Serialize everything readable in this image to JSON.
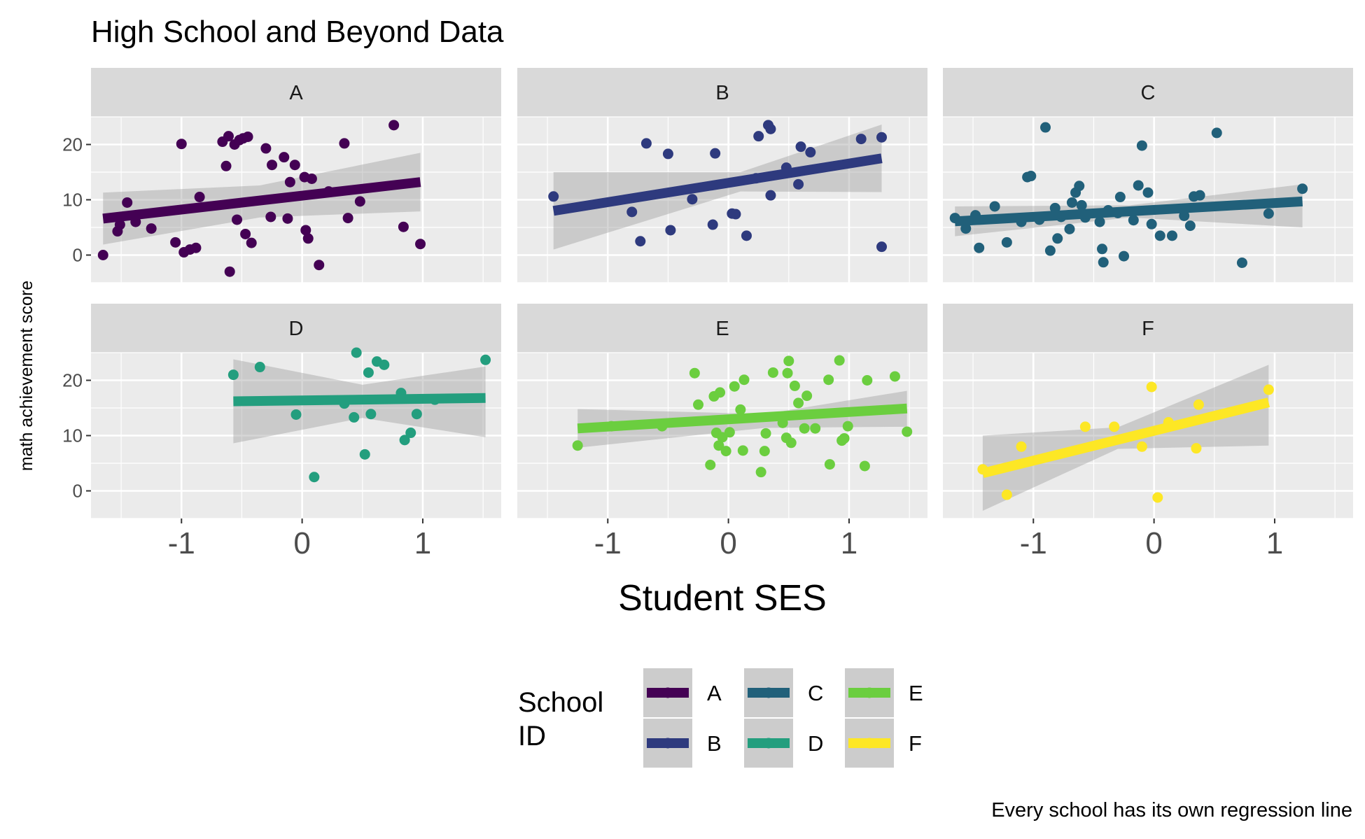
{
  "chart_data": {
    "type": "scatter",
    "title": "High School and Beyond Data",
    "xlabel": "Student SES",
    "ylabel": "math achievement score",
    "caption": "Every school has its own regression line",
    "xlim": [
      -1.75,
      1.65
    ],
    "ylim": [
      -5,
      25
    ],
    "x_ticks": [
      -1,
      0,
      1
    ],
    "x_tick_labels": [
      "-1",
      "0",
      "1"
    ],
    "y_ticks": [
      0,
      10,
      20
    ],
    "y_tick_labels": [
      "0",
      "10",
      "20"
    ],
    "grid": true,
    "facet_layout": "2x3",
    "legend": {
      "title_lines": [
        "School",
        "ID"
      ],
      "position": "bottom",
      "labels": [
        "A",
        "B",
        "C",
        "D",
        "E",
        "F"
      ]
    },
    "panels": [
      {
        "name": "A",
        "color": "#440154",
        "points": [
          [
            -1.65,
            0
          ],
          [
            -1.53,
            4.3
          ],
          [
            -1.51,
            5.5
          ],
          [
            -1.45,
            9.5
          ],
          [
            -1.38,
            6
          ],
          [
            -1.25,
            4.8
          ],
          [
            -1.05,
            2.3
          ],
          [
            -1.0,
            20.1
          ],
          [
            -0.98,
            0.5
          ],
          [
            -0.93,
            1
          ],
          [
            -0.88,
            1.3
          ],
          [
            -0.85,
            10.5
          ],
          [
            -0.66,
            20.5
          ],
          [
            -0.63,
            16.1
          ],
          [
            -0.61,
            21.5
          ],
          [
            -0.6,
            -3
          ],
          [
            -0.56,
            20
          ],
          [
            -0.54,
            6.4
          ],
          [
            -0.52,
            20.8
          ],
          [
            -0.49,
            21.1
          ],
          [
            -0.47,
            3.8
          ],
          [
            -0.45,
            21.4
          ],
          [
            -0.42,
            2.2
          ],
          [
            -0.3,
            19.3
          ],
          [
            -0.26,
            6.9
          ],
          [
            -0.25,
            16.3
          ],
          [
            -0.15,
            17.7
          ],
          [
            -0.12,
            6.6
          ],
          [
            -0.1,
            13.2
          ],
          [
            -0.06,
            16.3
          ],
          [
            0.02,
            14.1
          ],
          [
            0.03,
            4.5
          ],
          [
            0.05,
            3
          ],
          [
            0.08,
            13.8
          ],
          [
            0.14,
            -1.8
          ],
          [
            0.22,
            11.5
          ],
          [
            0.35,
            20.2
          ],
          [
            0.38,
            6.7
          ],
          [
            0.48,
            9.7
          ],
          [
            0.76,
            23.5
          ],
          [
            0.84,
            5.1
          ],
          [
            0.98,
            2
          ]
        ],
        "fit": [
          [
            -1.65,
            6.6
          ],
          [
            0.98,
            13.2
          ]
        ],
        "ci_upper": [
          [
            -1.65,
            11.3
          ],
          [
            -0.35,
            12.6
          ],
          [
            0.98,
            18.5
          ]
        ],
        "ci_lower": [
          [
            -1.65,
            1.9
          ],
          [
            -0.35,
            6.8
          ],
          [
            0.98,
            7.9
          ]
        ]
      },
      {
        "name": "B",
        "color": "#2e3a7e",
        "points": [
          [
            -1.45,
            10.6
          ],
          [
            -0.8,
            7.8
          ],
          [
            -0.73,
            2.5
          ],
          [
            -0.68,
            20.2
          ],
          [
            -0.5,
            18.3
          ],
          [
            -0.48,
            4.5
          ],
          [
            -0.3,
            10.1
          ],
          [
            -0.13,
            5.5
          ],
          [
            -0.11,
            18.4
          ],
          [
            0.03,
            7.5
          ],
          [
            0.06,
            7.4
          ],
          [
            0.15,
            3.5
          ],
          [
            0.23,
            13.9
          ],
          [
            0.25,
            21.5
          ],
          [
            0.33,
            23.5
          ],
          [
            0.35,
            22.8
          ],
          [
            0.35,
            10.8
          ],
          [
            0.48,
            15.8
          ],
          [
            0.58,
            12.8
          ],
          [
            0.6,
            19.6
          ],
          [
            0.68,
            18.6
          ],
          [
            1.1,
            21
          ],
          [
            1.27,
            21.3
          ],
          [
            1.27,
            1.5
          ]
        ],
        "fit": [
          [
            -1.45,
            8
          ],
          [
            1.27,
            17.5
          ]
        ],
        "ci_upper": [
          [
            -1.45,
            15
          ],
          [
            0.1,
            15
          ],
          [
            1.27,
            23.6
          ]
        ],
        "ci_lower": [
          [
            -1.45,
            1
          ],
          [
            0.1,
            11.5
          ],
          [
            1.27,
            11.4
          ]
        ]
      },
      {
        "name": "C",
        "color": "#21607a",
        "points": [
          [
            -1.65,
            6.7
          ],
          [
            -1.56,
            4.8
          ],
          [
            -1.48,
            7.2
          ],
          [
            -1.45,
            1.3
          ],
          [
            -1.32,
            8.8
          ],
          [
            -1.22,
            2.3
          ],
          [
            -1.1,
            6
          ],
          [
            -1.05,
            14.1
          ],
          [
            -1.02,
            14.3
          ],
          [
            -0.95,
            6.4
          ],
          [
            -0.9,
            23.1
          ],
          [
            -0.86,
            0.8
          ],
          [
            -0.82,
            8.5
          ],
          [
            -0.8,
            3
          ],
          [
            -0.77,
            6.9
          ],
          [
            -0.7,
            4.7
          ],
          [
            -0.68,
            9.5
          ],
          [
            -0.65,
            11.3
          ],
          [
            -0.62,
            12.5
          ],
          [
            -0.6,
            9
          ],
          [
            -0.57,
            6.8
          ],
          [
            -0.45,
            6
          ],
          [
            -0.43,
            1.1
          ],
          [
            -0.42,
            -1.3
          ],
          [
            -0.38,
            8.1
          ],
          [
            -0.3,
            7.6
          ],
          [
            -0.28,
            10.5
          ],
          [
            -0.25,
            -0.2
          ],
          [
            -0.17,
            6.3
          ],
          [
            -0.13,
            12.6
          ],
          [
            -0.1,
            19.8
          ],
          [
            -0.05,
            11.3
          ],
          [
            -0.02,
            5.6
          ],
          [
            0.05,
            3.5
          ],
          [
            0.15,
            3.5
          ],
          [
            0.25,
            7.1
          ],
          [
            0.3,
            5.3
          ],
          [
            0.33,
            10.6
          ],
          [
            0.38,
            10.8
          ],
          [
            0.52,
            22.1
          ],
          [
            0.73,
            -1.4
          ],
          [
            0.95,
            7.5
          ],
          [
            1.23,
            12
          ]
        ],
        "fit": [
          [
            -1.65,
            6.1
          ],
          [
            1.23,
            9.7
          ]
        ],
        "ci_upper": [
          [
            -1.65,
            8.8
          ],
          [
            -0.2,
            9
          ],
          [
            1.23,
            12.8
          ]
        ],
        "ci_lower": [
          [
            -1.65,
            3.4
          ],
          [
            -0.2,
            6.8
          ],
          [
            1.23,
            5
          ]
        ]
      },
      {
        "name": "D",
        "color": "#239e7e",
        "points": [
          [
            -0.57,
            21
          ],
          [
            -0.35,
            22.4
          ],
          [
            -0.05,
            13.8
          ],
          [
            0.1,
            2.5
          ],
          [
            0.35,
            15.8
          ],
          [
            0.43,
            13.3
          ],
          [
            0.45,
            25
          ],
          [
            0.52,
            6.6
          ],
          [
            0.55,
            21.4
          ],
          [
            0.57,
            13.9
          ],
          [
            0.62,
            23.4
          ],
          [
            0.68,
            22.8
          ],
          [
            0.82,
            17.7
          ],
          [
            0.85,
            9.2
          ],
          [
            0.9,
            10.5
          ],
          [
            0.95,
            13.9
          ],
          [
            1.1,
            16.5
          ],
          [
            1.52,
            23.7
          ]
        ],
        "fit": [
          [
            -0.57,
            16.2
          ],
          [
            1.52,
            16.8
          ]
        ],
        "ci_upper": [
          [
            -0.57,
            23.8
          ],
          [
            0.5,
            19.2
          ],
          [
            1.52,
            22.5
          ]
        ],
        "ci_lower": [
          [
            -0.57,
            8.6
          ],
          [
            0.5,
            13.2
          ],
          [
            1.52,
            9.7
          ]
        ]
      },
      {
        "name": "E",
        "color": "#6bce3f",
        "points": [
          [
            -1.25,
            8.2
          ],
          [
            -0.97,
            11.7
          ],
          [
            -0.55,
            11.7
          ],
          [
            -0.28,
            21.3
          ],
          [
            -0.25,
            15.6
          ],
          [
            -0.15,
            4.7
          ],
          [
            -0.12,
            17.1
          ],
          [
            -0.1,
            10.5
          ],
          [
            -0.08,
            8.2
          ],
          [
            -0.07,
            17.8
          ],
          [
            -0.05,
            9.7
          ],
          [
            -0.02,
            7.2
          ],
          [
            0.01,
            10.6
          ],
          [
            0.05,
            18.9
          ],
          [
            0.1,
            14.7
          ],
          [
            0.12,
            7.3
          ],
          [
            0.13,
            20.1
          ],
          [
            0.27,
            3.4
          ],
          [
            0.3,
            7.2
          ],
          [
            0.31,
            10.4
          ],
          [
            0.37,
            21.4
          ],
          [
            0.45,
            12.3
          ],
          [
            0.48,
            9.6
          ],
          [
            0.49,
            21.3
          ],
          [
            0.5,
            23.5
          ],
          [
            0.52,
            8.7
          ],
          [
            0.55,
            19
          ],
          [
            0.58,
            15.9
          ],
          [
            0.63,
            11.3
          ],
          [
            0.65,
            17.2
          ],
          [
            0.72,
            11.3
          ],
          [
            0.83,
            20.1
          ],
          [
            0.84,
            4.8
          ],
          [
            0.92,
            23.6
          ],
          [
            0.94,
            9.1
          ],
          [
            0.96,
            9.5
          ],
          [
            0.99,
            11.7
          ],
          [
            1.13,
            4.5
          ],
          [
            1.15,
            20
          ],
          [
            1.38,
            20.7
          ],
          [
            1.48,
            10.7
          ]
        ],
        "fit": [
          [
            -1.25,
            11.3
          ],
          [
            1.48,
            14.9
          ]
        ],
        "ci_upper": [
          [
            -1.25,
            14.8
          ],
          [
            0.3,
            13.9
          ],
          [
            1.48,
            18.1
          ]
        ],
        "ci_lower": [
          [
            -1.25,
            7.8
          ],
          [
            0.3,
            11.4
          ],
          [
            1.48,
            11.6
          ]
        ]
      },
      {
        "name": "F",
        "color": "#fde725",
        "points": [
          [
            -1.42,
            3.9
          ],
          [
            -1.22,
            -0.7
          ],
          [
            -1.1,
            8
          ],
          [
            -0.57,
            11.6
          ],
          [
            -0.33,
            11.6
          ],
          [
            -0.1,
            8
          ],
          [
            -0.02,
            18.8
          ],
          [
            0.03,
            -1.2
          ],
          [
            0.12,
            12.4
          ],
          [
            0.35,
            7.7
          ],
          [
            0.37,
            15.6
          ],
          [
            0.95,
            18.3
          ]
        ],
        "fit": [
          [
            -1.42,
            3.2
          ],
          [
            0.95,
            16
          ]
        ],
        "ci_upper": [
          [
            -1.42,
            10
          ],
          [
            -0.3,
            11.5
          ],
          [
            0.95,
            22.8
          ]
        ],
        "ci_lower": [
          [
            -1.42,
            -3.6
          ],
          [
            -0.3,
            7.6
          ],
          [
            0.95,
            8.2
          ]
        ]
      }
    ]
  }
}
